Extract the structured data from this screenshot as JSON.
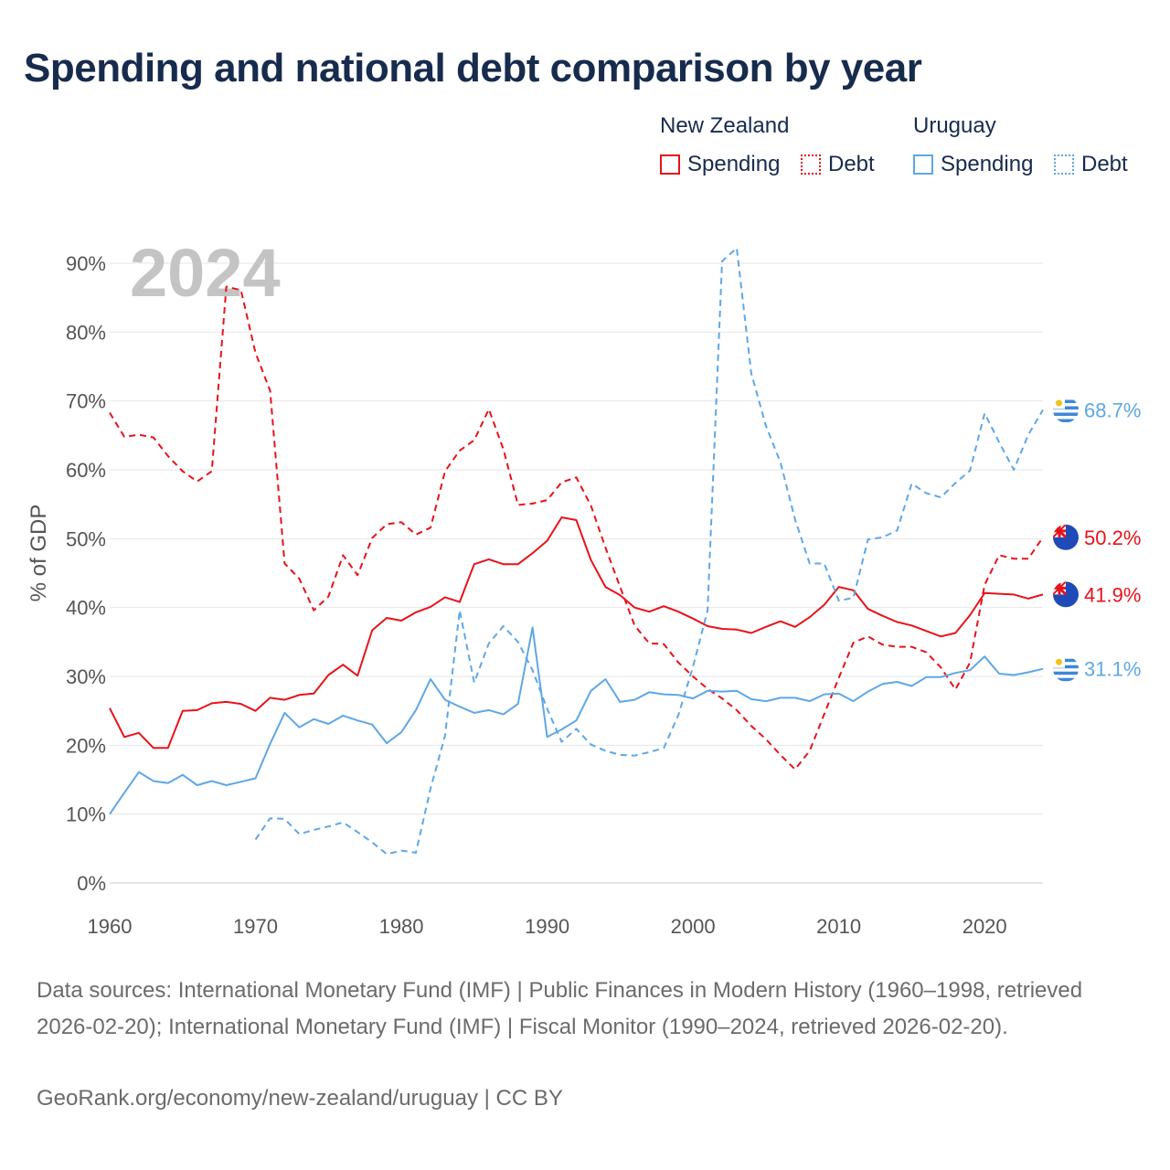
{
  "title": "Spending and national debt comparison by year",
  "legend": {
    "groups": [
      {
        "name": "New Zealand",
        "color": "#e8121a",
        "items": [
          {
            "label": "Spending",
            "style": "solid"
          },
          {
            "label": "Debt",
            "style": "dotted"
          }
        ]
      },
      {
        "name": "Uruguay",
        "color": "#5ea7e6",
        "items": [
          {
            "label": "Spending",
            "style": "solid"
          },
          {
            "label": "Debt",
            "style": "dotted"
          }
        ]
      }
    ]
  },
  "footer": {
    "sources": "Data sources: International Monetary Fund (IMF) | Public Finances in Modern History (1960–1998, retrieved 2026-02-20); International Monetary Fund (IMF) | Fiscal Monitor (1990–2024, retrieved 2026-02-20).",
    "credit": "GeoRank.org/economy/new-zealand/uruguay | CC BY"
  },
  "chart_data": {
    "type": "line",
    "title": "Spending and national debt comparison by year",
    "year_label": "2024",
    "ylabel": "% of GDP",
    "xlabel": "",
    "xlim": [
      1960,
      2024
    ],
    "ylim": [
      0,
      90
    ],
    "x_ticks": [
      1960,
      1970,
      1980,
      1990,
      2000,
      2010,
      2020
    ],
    "y_ticks": [
      0,
      10,
      20,
      30,
      40,
      50,
      60,
      70,
      80,
      90
    ],
    "y_tick_labels": [
      "0%",
      "10%",
      "20%",
      "30%",
      "40%",
      "50%",
      "60%",
      "70%",
      "80%",
      "90%"
    ],
    "grid": true,
    "series": [
      {
        "name": "New Zealand Spending",
        "country": "nz",
        "color": "#e8121a",
        "dash": "solid",
        "end_label": "41.9%",
        "points": [
          [
            1960,
            25.4
          ],
          [
            1961,
            21.2
          ],
          [
            1962,
            21.8
          ],
          [
            1963,
            19.6
          ],
          [
            1964,
            19.6
          ],
          [
            1965,
            25.0
          ],
          [
            1966,
            25.1
          ],
          [
            1967,
            26.1
          ],
          [
            1968,
            26.3
          ],
          [
            1969,
            26.0
          ],
          [
            1970,
            25.0
          ],
          [
            1971,
            26.9
          ],
          [
            1972,
            26.6
          ],
          [
            1973,
            27.3
          ],
          [
            1974,
            27.5
          ],
          [
            1975,
            30.2
          ],
          [
            1976,
            31.7
          ],
          [
            1977,
            30.1
          ],
          [
            1978,
            36.7
          ],
          [
            1979,
            38.5
          ],
          [
            1980,
            38.1
          ],
          [
            1981,
            39.3
          ],
          [
            1982,
            40.1
          ],
          [
            1983,
            41.5
          ],
          [
            1984,
            40.8
          ],
          [
            1985,
            46.3
          ],
          [
            1986,
            47.0
          ],
          [
            1987,
            46.3
          ],
          [
            1988,
            46.3
          ],
          [
            1989,
            47.9
          ],
          [
            1990,
            49.7
          ],
          [
            1991,
            53.1
          ],
          [
            1992,
            52.7
          ],
          [
            1993,
            46.9
          ],
          [
            1994,
            43.0
          ],
          [
            1995,
            41.8
          ],
          [
            1996,
            40.0
          ],
          [
            1997,
            39.4
          ],
          [
            1998,
            40.2
          ],
          [
            1999,
            39.4
          ],
          [
            2000,
            38.4
          ],
          [
            2001,
            37.3
          ],
          [
            2002,
            36.9
          ],
          [
            2003,
            36.8
          ],
          [
            2004,
            36.3
          ],
          [
            2005,
            37.2
          ],
          [
            2006,
            38.0
          ],
          [
            2007,
            37.2
          ],
          [
            2008,
            38.6
          ],
          [
            2009,
            40.4
          ],
          [
            2010,
            43.0
          ],
          [
            2011,
            42.5
          ],
          [
            2012,
            39.8
          ],
          [
            2013,
            38.8
          ],
          [
            2014,
            37.9
          ],
          [
            2015,
            37.4
          ],
          [
            2016,
            36.6
          ],
          [
            2017,
            35.8
          ],
          [
            2018,
            36.3
          ],
          [
            2019,
            38.9
          ],
          [
            2020,
            42.1
          ],
          [
            2021,
            42.0
          ],
          [
            2022,
            41.9
          ],
          [
            2023,
            41.3
          ],
          [
            2024,
            41.9
          ]
        ]
      },
      {
        "name": "New Zealand Debt",
        "country": "nz",
        "color": "#e8121a",
        "dash": "dashed",
        "end_label": "50.2%",
        "points": [
          [
            1960,
            68.3
          ],
          [
            1961,
            64.8
          ],
          [
            1962,
            65.1
          ],
          [
            1963,
            64.7
          ],
          [
            1964,
            62.0
          ],
          [
            1965,
            59.8
          ],
          [
            1966,
            58.3
          ],
          [
            1967,
            59.8
          ],
          [
            1968,
            86.6
          ],
          [
            1969,
            86.1
          ],
          [
            1970,
            77.0
          ],
          [
            1971,
            71.5
          ],
          [
            1972,
            46.4
          ],
          [
            1973,
            44.2
          ],
          [
            1974,
            39.6
          ],
          [
            1975,
            41.6
          ],
          [
            1976,
            47.6
          ],
          [
            1977,
            44.7
          ],
          [
            1978,
            50.1
          ],
          [
            1979,
            52.1
          ],
          [
            1980,
            52.4
          ],
          [
            1981,
            50.6
          ],
          [
            1982,
            51.6
          ],
          [
            1983,
            59.8
          ],
          [
            1984,
            62.8
          ],
          [
            1985,
            64.3
          ],
          [
            1986,
            68.8
          ],
          [
            1987,
            63.0
          ],
          [
            1988,
            54.9
          ],
          [
            1989,
            55.1
          ],
          [
            1990,
            55.6
          ],
          [
            1991,
            58.2
          ],
          [
            1992,
            58.9
          ],
          [
            1993,
            54.8
          ],
          [
            1994,
            48.7
          ],
          [
            1995,
            43.0
          ],
          [
            1996,
            37.4
          ],
          [
            1997,
            34.8
          ],
          [
            1998,
            34.7
          ],
          [
            1999,
            32.0
          ],
          [
            2000,
            30.0
          ],
          [
            2001,
            28.2
          ],
          [
            2002,
            26.8
          ],
          [
            2003,
            25.1
          ],
          [
            2004,
            22.8
          ],
          [
            2005,
            20.9
          ],
          [
            2006,
            18.6
          ],
          [
            2007,
            16.5
          ],
          [
            2008,
            19.2
          ],
          [
            2009,
            24.5
          ],
          [
            2010,
            29.8
          ],
          [
            2011,
            34.9
          ],
          [
            2012,
            35.8
          ],
          [
            2013,
            34.6
          ],
          [
            2014,
            34.3
          ],
          [
            2015,
            34.3
          ],
          [
            2016,
            33.5
          ],
          [
            2017,
            31.3
          ],
          [
            2018,
            28.1
          ],
          [
            2019,
            32.0
          ],
          [
            2020,
            43.3
          ],
          [
            2021,
            47.6
          ],
          [
            2022,
            47.1
          ],
          [
            2023,
            47.1
          ],
          [
            2024,
            50.2
          ]
        ]
      },
      {
        "name": "Uruguay Spending",
        "country": "uy",
        "color": "#5ea7e6",
        "dash": "solid",
        "end_label": "31.1%",
        "points": [
          [
            1960,
            10.0
          ],
          [
            1961,
            13.1
          ],
          [
            1962,
            16.1
          ],
          [
            1963,
            14.8
          ],
          [
            1964,
            14.5
          ],
          [
            1965,
            15.7
          ],
          [
            1966,
            14.2
          ],
          [
            1967,
            14.8
          ],
          [
            1968,
            14.2
          ],
          [
            1969,
            14.7
          ],
          [
            1970,
            15.2
          ],
          [
            1971,
            20.2
          ],
          [
            1972,
            24.7
          ],
          [
            1973,
            22.6
          ],
          [
            1974,
            23.8
          ],
          [
            1975,
            23.1
          ],
          [
            1976,
            24.3
          ],
          [
            1977,
            23.6
          ],
          [
            1978,
            23.0
          ],
          [
            1979,
            20.3
          ],
          [
            1980,
            21.9
          ],
          [
            1981,
            25.1
          ],
          [
            1982,
            29.6
          ],
          [
            1983,
            26.6
          ],
          [
            1984,
            25.6
          ],
          [
            1985,
            24.7
          ],
          [
            1986,
            25.1
          ],
          [
            1987,
            24.5
          ],
          [
            1988,
            26.0
          ],
          [
            1989,
            37.1
          ],
          [
            1990,
            21.2
          ],
          [
            1991,
            22.3
          ],
          [
            1992,
            23.6
          ],
          [
            1993,
            27.9
          ],
          [
            1994,
            29.6
          ],
          [
            1995,
            26.3
          ],
          [
            1996,
            26.6
          ],
          [
            1997,
            27.7
          ],
          [
            1998,
            27.4
          ],
          [
            1999,
            27.3
          ],
          [
            2000,
            26.8
          ],
          [
            2001,
            27.9
          ],
          [
            2002,
            27.8
          ],
          [
            2003,
            27.9
          ],
          [
            2004,
            26.7
          ],
          [
            2005,
            26.4
          ],
          [
            2006,
            26.9
          ],
          [
            2007,
            26.9
          ],
          [
            2008,
            26.4
          ],
          [
            2009,
            27.4
          ],
          [
            2010,
            27.5
          ],
          [
            2011,
            26.4
          ],
          [
            2012,
            27.8
          ],
          [
            2013,
            28.9
          ],
          [
            2014,
            29.2
          ],
          [
            2015,
            28.6
          ],
          [
            2016,
            29.9
          ],
          [
            2017,
            29.9
          ],
          [
            2018,
            30.5
          ],
          [
            2019,
            30.9
          ],
          [
            2020,
            32.9
          ],
          [
            2021,
            30.4
          ],
          [
            2022,
            30.2
          ],
          [
            2023,
            30.6
          ],
          [
            2024,
            31.1
          ]
        ]
      },
      {
        "name": "Uruguay Debt",
        "country": "uy",
        "color": "#5ea7e6",
        "dash": "dashed",
        "end_label": "68.7%",
        "points": [
          [
            1970,
            6.3
          ],
          [
            1971,
            9.4
          ],
          [
            1972,
            9.3
          ],
          [
            1973,
            7.1
          ],
          [
            1974,
            7.7
          ],
          [
            1975,
            8.2
          ],
          [
            1976,
            8.8
          ],
          [
            1977,
            7.4
          ],
          [
            1978,
            5.9
          ],
          [
            1979,
            4.2
          ],
          [
            1980,
            4.7
          ],
          [
            1981,
            4.4
          ],
          [
            1982,
            13.7
          ],
          [
            1983,
            21.4
          ],
          [
            1984,
            39.6
          ],
          [
            1985,
            29.1
          ],
          [
            1986,
            34.8
          ],
          [
            1987,
            37.3
          ],
          [
            1988,
            35.0
          ],
          [
            1989,
            30.9
          ],
          [
            1990,
            25.3
          ],
          [
            1991,
            20.5
          ],
          [
            1992,
            22.4
          ],
          [
            1993,
            20.1
          ],
          [
            1994,
            19.2
          ],
          [
            1995,
            18.6
          ],
          [
            1996,
            18.5
          ],
          [
            1997,
            19.0
          ],
          [
            1998,
            19.6
          ],
          [
            1999,
            24.4
          ],
          [
            2000,
            31.4
          ],
          [
            2001,
            39.6
          ],
          [
            2002,
            90.3
          ],
          [
            2003,
            92.2
          ],
          [
            2004,
            74.0
          ],
          [
            2005,
            66.4
          ],
          [
            2006,
            61.1
          ],
          [
            2007,
            52.8
          ],
          [
            2008,
            46.4
          ],
          [
            2009,
            46.4
          ],
          [
            2010,
            41.0
          ],
          [
            2011,
            41.4
          ],
          [
            2012,
            49.9
          ],
          [
            2013,
            50.2
          ],
          [
            2014,
            51.2
          ],
          [
            2015,
            58.0
          ],
          [
            2016,
            56.6
          ],
          [
            2017,
            56.0
          ],
          [
            2018,
            58.1
          ],
          [
            2019,
            59.9
          ],
          [
            2020,
            68.2
          ],
          [
            2021,
            64.0
          ],
          [
            2022,
            60.0
          ],
          [
            2023,
            65.1
          ],
          [
            2024,
            68.7
          ]
        ]
      }
    ]
  }
}
